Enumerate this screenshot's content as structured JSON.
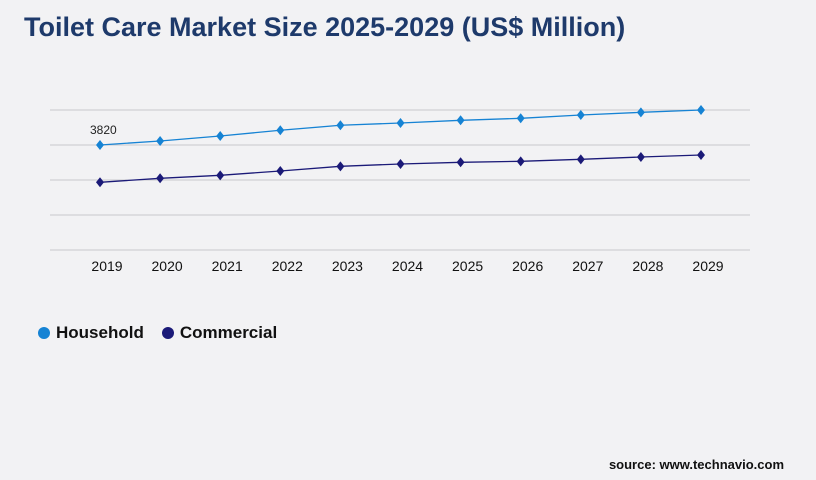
{
  "chart_data": {
    "type": "line",
    "title": "Toilet Care Market Size 2025-2029 (US$ Million)",
    "xlabel": "",
    "ylabel": "",
    "categories": [
      "2019",
      "2020",
      "2021",
      "2022",
      "2023",
      "2024",
      "2025",
      "2026",
      "2027",
      "2028",
      "2029"
    ],
    "ylim": [
      0,
      5093
    ],
    "grid": true,
    "legend": "bottom-left",
    "series": [
      {
        "name": "Household",
        "color": "#1683d4",
        "values": [
          3820,
          3966,
          4148,
          4355,
          4537,
          4620,
          4718,
          4791,
          4911,
          5008,
          5093
        ]
      },
      {
        "name": "Commercial",
        "color": "#1b1a78",
        "values": [
          2463,
          2608,
          2717,
          2874,
          3044,
          3129,
          3190,
          3226,
          3299,
          3383,
          3456
        ]
      }
    ],
    "annotations": [
      {
        "series": "Household",
        "category": "2019",
        "text": "3820"
      }
    ]
  },
  "source": "source: www.technavio.com"
}
